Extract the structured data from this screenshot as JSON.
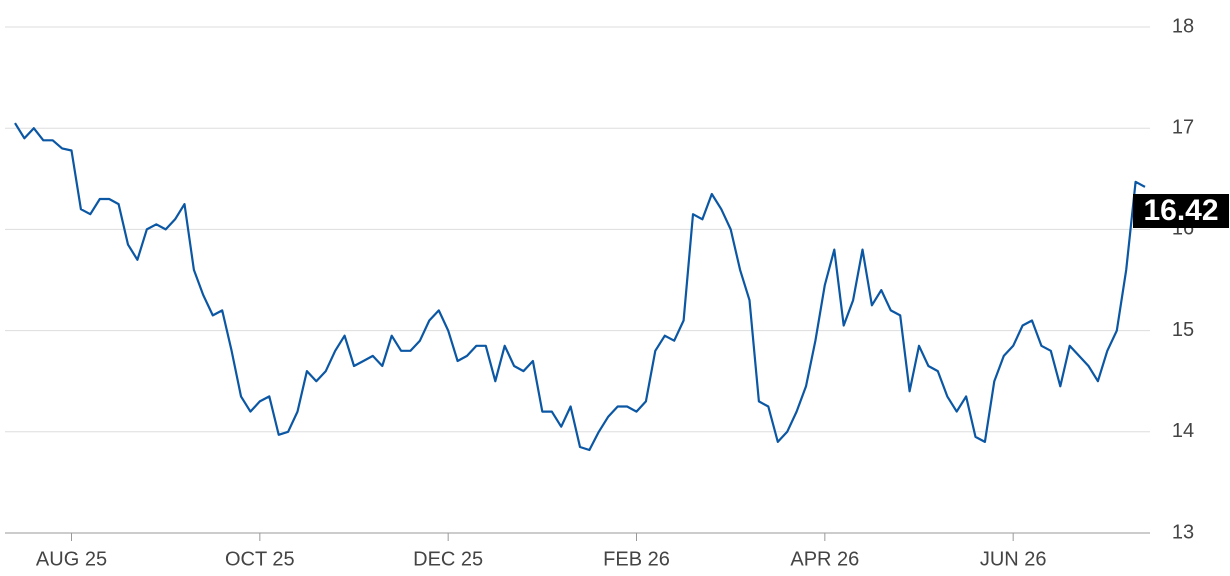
{
  "chart_data": {
    "type": "line",
    "categories": [
      null,
      null,
      null,
      null,
      null,
      null,
      "AUG 25",
      null,
      null,
      null,
      null,
      null,
      null,
      null,
      null,
      null,
      null,
      null,
      null,
      null,
      null,
      null,
      null,
      null,
      null,
      null,
      "OCT 25",
      null,
      null,
      null,
      null,
      null,
      null,
      null,
      null,
      null,
      null,
      null,
      null,
      null,
      null,
      null,
      null,
      null,
      null,
      null,
      "DEC 25",
      null,
      null,
      null,
      null,
      null,
      null,
      null,
      null,
      null,
      null,
      null,
      null,
      null,
      null,
      null,
      null,
      null,
      null,
      null,
      "FEB 26",
      null,
      null,
      null,
      null,
      null,
      null,
      null,
      null,
      null,
      null,
      null,
      null,
      null,
      null,
      null,
      null,
      null,
      null,
      null,
      "APR 26",
      null,
      null,
      null,
      null,
      null,
      null,
      null,
      null,
      null,
      null,
      null,
      null,
      null,
      null,
      null,
      null,
      null,
      null,
      null,
      "JUN 26",
      null,
      null,
      null,
      null,
      null,
      null,
      null,
      null,
      null,
      null,
      null,
      null,
      null,
      null
    ],
    "values": [
      17.05,
      16.9,
      17.0,
      16.88,
      16.88,
      16.8,
      16.78,
      16.2,
      16.15,
      16.3,
      16.3,
      16.25,
      15.85,
      15.7,
      16.0,
      16.05,
      16.0,
      16.1,
      16.25,
      15.6,
      15.35,
      15.15,
      15.2,
      14.8,
      14.35,
      14.2,
      14.3,
      14.35,
      13.97,
      14.0,
      14.2,
      14.6,
      14.5,
      14.6,
      14.8,
      14.95,
      14.65,
      14.7,
      14.75,
      14.65,
      14.95,
      14.8,
      14.8,
      14.9,
      15.1,
      15.2,
      15.0,
      14.7,
      14.75,
      14.85,
      14.85,
      14.5,
      14.85,
      14.65,
      14.6,
      14.7,
      14.2,
      14.2,
      14.05,
      14.25,
      13.85,
      13.82,
      14.0,
      14.15,
      14.25,
      14.25,
      14.2,
      14.3,
      14.8,
      14.95,
      14.9,
      15.1,
      16.15,
      16.1,
      16.35,
      16.2,
      16.0,
      15.6,
      15.3,
      14.3,
      14.25,
      13.9,
      14.0,
      14.2,
      14.45,
      14.9,
      15.45,
      15.8,
      15.05,
      15.3,
      15.8,
      15.25,
      15.4,
      15.2,
      15.15,
      14.4,
      14.85,
      14.65,
      14.6,
      14.35,
      14.2,
      14.35,
      13.95,
      13.9,
      14.5,
      14.75,
      14.85,
      15.05,
      15.1,
      14.85,
      14.8,
      14.45,
      14.85,
      14.75,
      14.65,
      14.5,
      14.8,
      15.0,
      15.6,
      16.47,
      16.42
    ],
    "color": "#0b57a4",
    "ylim": [
      13,
      18
    ],
    "yticks": [
      13,
      14,
      15,
      16,
      17,
      18
    ],
    "grid": true
  }
}
